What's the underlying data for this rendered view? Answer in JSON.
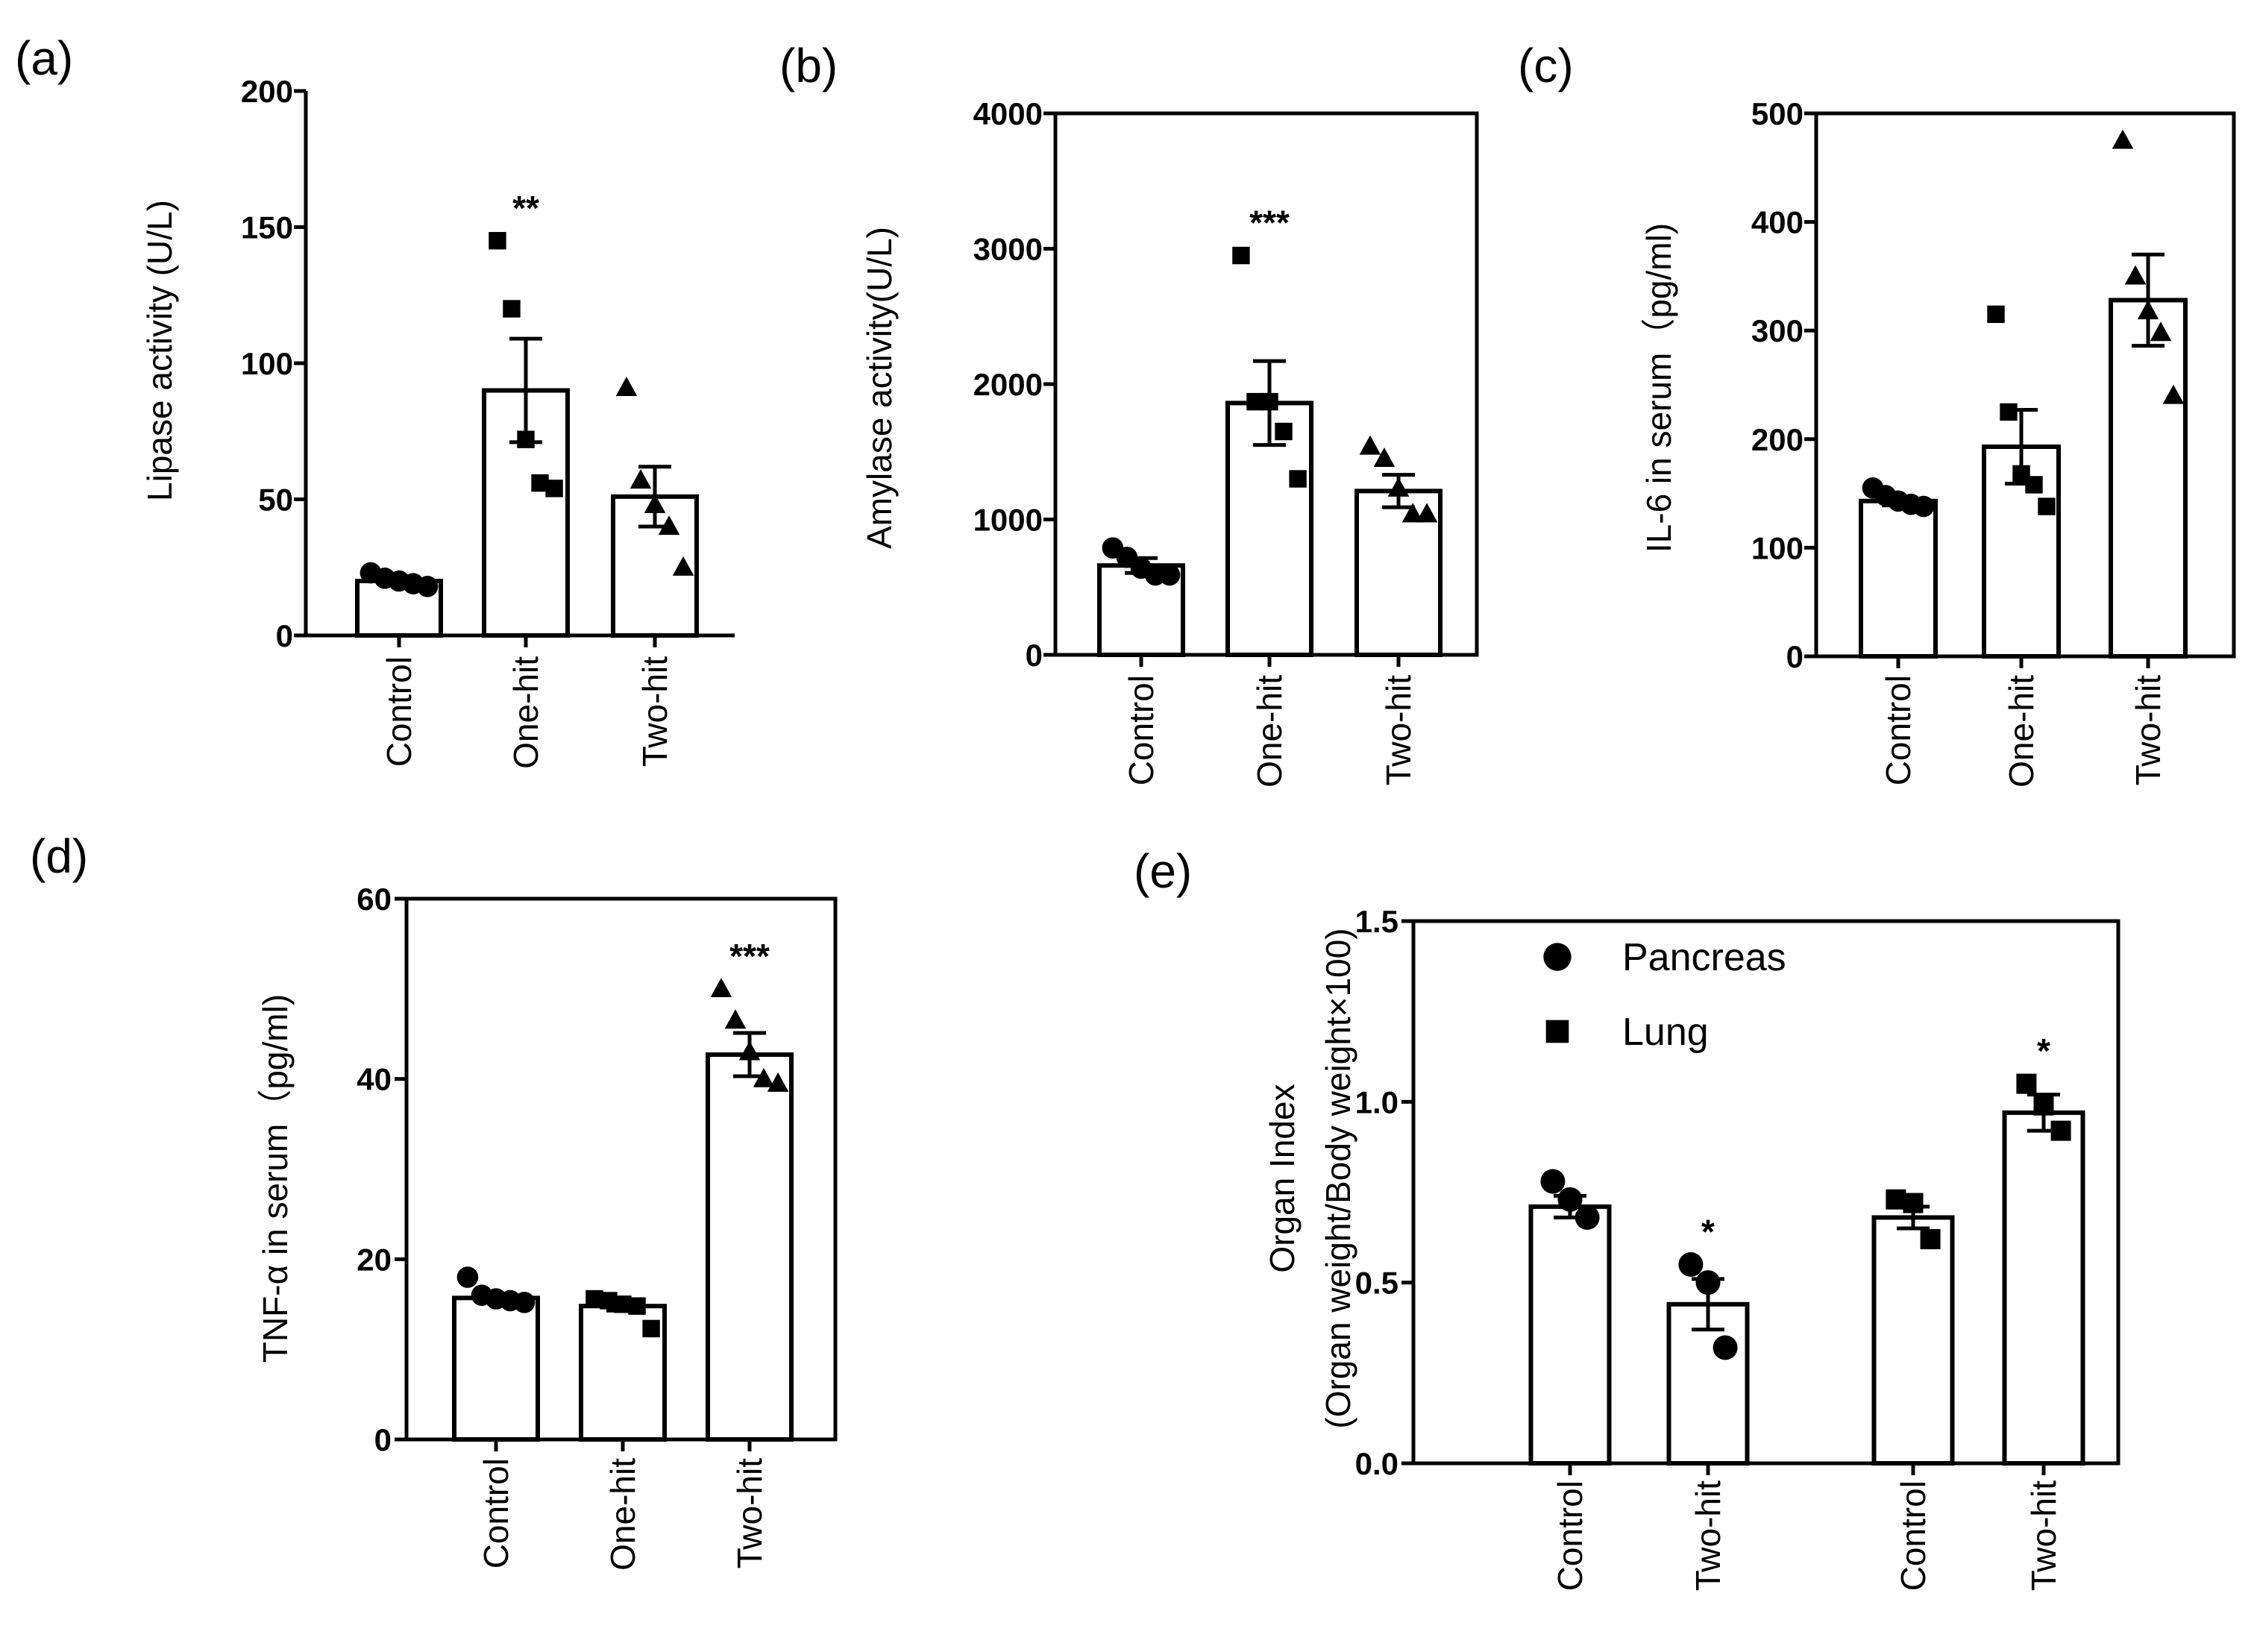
{
  "chart_data": [
    {
      "id": "a",
      "panel_label": "(a)",
      "type": "bar",
      "ylabel": "Lipase activity (U/L)",
      "ylim": [
        0,
        200
      ],
      "yticks": [
        0,
        50,
        100,
        150,
        200
      ],
      "bars": [
        {
          "category": "Control",
          "mean": 20,
          "sem": 1.5,
          "marker": "circle",
          "points": [
            23,
            21,
            20,
            19,
            18
          ],
          "sig": ""
        },
        {
          "category": "One-hit",
          "mean": 90,
          "sem": 19,
          "marker": "square",
          "points": [
            145,
            120,
            72,
            56,
            54
          ],
          "sig": "**"
        },
        {
          "category": "Two-hit",
          "mean": 51,
          "sem": 11,
          "marker": "triangle",
          "points": [
            91,
            57,
            48,
            40,
            25
          ],
          "sig": ""
        }
      ]
    },
    {
      "id": "b",
      "panel_label": "(b)",
      "type": "bar",
      "ylabel": "Amylase activity(U/L)",
      "ylim": [
        0,
        4000
      ],
      "yticks": [
        0,
        1000,
        2000,
        3000,
        4000
      ],
      "bars": [
        {
          "category": "Control",
          "mean": 660,
          "sem": 55,
          "marker": "circle",
          "points": [
            790,
            720,
            640,
            590,
            590
          ],
          "sig": ""
        },
        {
          "category": "One-hit",
          "mean": 1860,
          "sem": 310,
          "marker": "square",
          "points": [
            2950,
            1870,
            1870,
            1650,
            1300
          ],
          "sig": "***"
        },
        {
          "category": "Two-hit",
          "mean": 1210,
          "sem": 120,
          "marker": "triangle",
          "points": [
            1540,
            1450,
            1230,
            1040,
            1040
          ],
          "sig": ""
        }
      ]
    },
    {
      "id": "c",
      "panel_label": "(c)",
      "type": "bar",
      "ylabel": "IL-6 in serum（pg/ml)",
      "ylim": [
        0,
        500
      ],
      "yticks": [
        0,
        100,
        200,
        300,
        400,
        500
      ],
      "bars": [
        {
          "category": "Control",
          "mean": 143,
          "sem": 4,
          "marker": "circle",
          "points": [
            155,
            148,
            143,
            140,
            138
          ],
          "sig": ""
        },
        {
          "category": "One-hit",
          "mean": 193,
          "sem": 34,
          "marker": "square",
          "points": [
            315,
            225,
            168,
            158,
            138
          ],
          "sig": ""
        },
        {
          "category": "Two-hit",
          "mean": 328,
          "sem": 42,
          "marker": "triangle",
          "points": [
            475,
            350,
            318,
            298,
            240
          ],
          "sig": ""
        }
      ]
    },
    {
      "id": "d",
      "panel_label": "(d)",
      "type": "bar",
      "ylabel": "TNF-α in serum（pg/ml)",
      "ylim": [
        0,
        60
      ],
      "yticks": [
        0,
        20,
        40,
        60
      ],
      "bars": [
        {
          "category": "Control",
          "mean": 15.7,
          "sem": 0.4,
          "marker": "circle",
          "points": [
            18,
            16,
            15.6,
            15.4,
            15.2
          ],
          "sig": ""
        },
        {
          "category": "One-hit",
          "mean": 14.8,
          "sem": 0.5,
          "marker": "square",
          "points": [
            15.6,
            15.4,
            15,
            14.8,
            12.3
          ],
          "sig": ""
        },
        {
          "category": "Two-hit",
          "mean": 42.7,
          "sem": 2.4,
          "marker": "triangle",
          "points": [
            50,
            46.5,
            43,
            40,
            39.5
          ],
          "sig": "***"
        }
      ]
    },
    {
      "id": "e",
      "panel_label": "(e)",
      "type": "bar",
      "ylabel_line1": "Organ Index",
      "ylabel_line2": "(Organ weight/Body weight×100)",
      "ylim": [
        0,
        1.5
      ],
      "yticks": [
        "0.0",
        "0.5",
        "1.0",
        "1.5"
      ],
      "legend": [
        {
          "label": "Pancreas",
          "marker": "circle"
        },
        {
          "label": "Lung",
          "marker": "square"
        }
      ],
      "legend_position": "top-left",
      "bars": [
        {
          "category": "Control",
          "group": "Pancreas",
          "mean": 0.71,
          "sem": 0.03,
          "marker": "circle",
          "points": [
            0.78,
            0.73,
            0.68
          ],
          "sig": ""
        },
        {
          "category": "Two-hit",
          "group": "Pancreas",
          "mean": 0.44,
          "sem": 0.07,
          "marker": "circle",
          "points": [
            0.55,
            0.5,
            0.32
          ],
          "sig": "*"
        },
        {
          "category": "Control",
          "group": "Lung",
          "mean": 0.68,
          "sem": 0.03,
          "marker": "square",
          "points": [
            0.73,
            0.72,
            0.62
          ],
          "sig": ""
        },
        {
          "category": "Two-hit",
          "group": "Lung",
          "mean": 0.97,
          "sem": 0.05,
          "marker": "square",
          "points": [
            1.05,
            0.99,
            0.92
          ],
          "sig": "*"
        }
      ]
    }
  ]
}
